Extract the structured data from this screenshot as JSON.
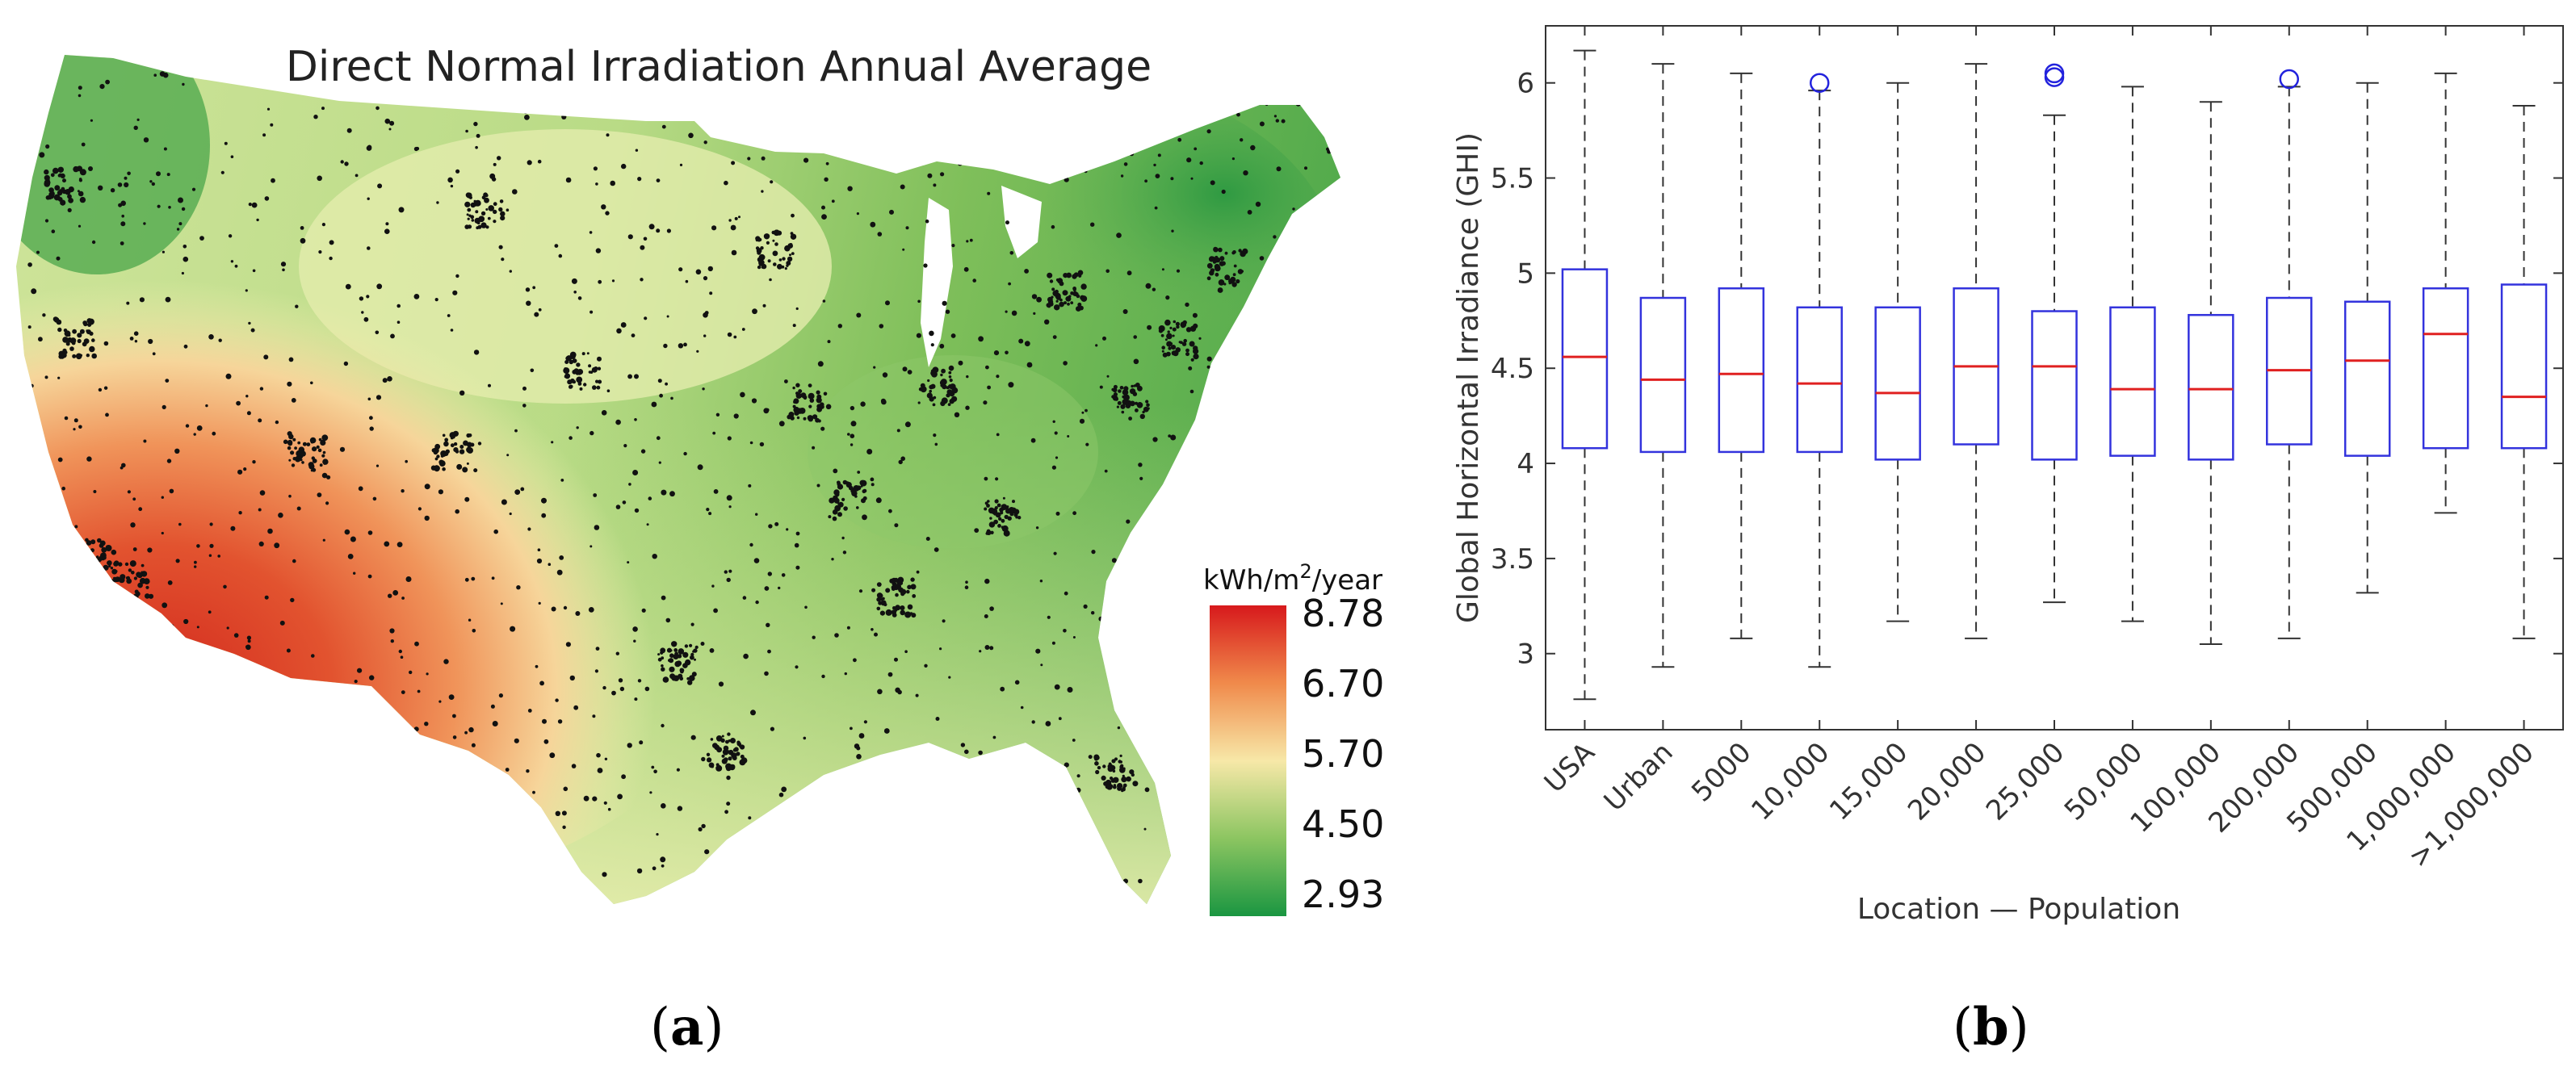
{
  "panels": {
    "a": {
      "letter": "a"
    },
    "b": {
      "letter": "b"
    }
  },
  "map": {
    "title": "Direct Normal Irradiation Annual Average",
    "legend": {
      "unit_prefix": "kWh/m",
      "unit_sup": "2",
      "unit_suffix": "/year",
      "ticks": [
        "8.78",
        "6.70",
        "5.70",
        "4.50",
        "2.93"
      ],
      "colors": [
        "#d7191c",
        "#f08a4b",
        "#f7e8a8",
        "#8cc561",
        "#1a9641"
      ]
    }
  },
  "chart_data": {
    "type": "boxplot",
    "xlabel": "Location — Population",
    "ylabel": "Global Horizontal Irradiance (GHI)",
    "ylim": [
      2.6,
      6.3
    ],
    "yticks": [
      "3",
      "3.5",
      "4",
      "4.5",
      "5",
      "5.5",
      "6"
    ],
    "categories": [
      "USA",
      "Urban",
      "5000",
      "10,000",
      "15,000",
      "20,000",
      "25,000",
      "50,000",
      "100,000",
      "200,000",
      "500,000",
      "1,000,000",
      ">1,000,000"
    ],
    "boxes": [
      {
        "min": 2.76,
        "q1": 4.08,
        "median": 4.56,
        "q3": 5.02,
        "max": 6.17,
        "outliers": []
      },
      {
        "min": 2.93,
        "q1": 4.06,
        "median": 4.44,
        "q3": 4.87,
        "max": 6.1,
        "outliers": []
      },
      {
        "min": 3.08,
        "q1": 4.06,
        "median": 4.47,
        "q3": 4.92,
        "max": 6.05,
        "outliers": []
      },
      {
        "min": 2.93,
        "q1": 4.06,
        "median": 4.42,
        "q3": 4.82,
        "max": 5.96,
        "outliers": [
          6.0
        ]
      },
      {
        "min": 3.17,
        "q1": 4.02,
        "median": 4.37,
        "q3": 4.82,
        "max": 6.0,
        "outliers": []
      },
      {
        "min": 3.08,
        "q1": 4.1,
        "median": 4.51,
        "q3": 4.92,
        "max": 6.1,
        "outliers": []
      },
      {
        "min": 3.27,
        "q1": 4.02,
        "median": 4.51,
        "q3": 4.8,
        "max": 5.83,
        "outliers": [
          6.03,
          6.05
        ]
      },
      {
        "min": 3.17,
        "q1": 4.04,
        "median": 4.39,
        "q3": 4.82,
        "max": 5.98,
        "outliers": []
      },
      {
        "min": 3.05,
        "q1": 4.02,
        "median": 4.39,
        "q3": 4.78,
        "max": 5.9,
        "outliers": []
      },
      {
        "min": 3.08,
        "q1": 4.1,
        "median": 4.49,
        "q3": 4.87,
        "max": 5.98,
        "outliers": [
          6.02
        ]
      },
      {
        "min": 3.32,
        "q1": 4.04,
        "median": 4.54,
        "q3": 4.85,
        "max": 6.0,
        "outliers": []
      },
      {
        "min": 3.74,
        "q1": 4.08,
        "median": 4.68,
        "q3": 4.92,
        "max": 6.05,
        "outliers": []
      },
      {
        "min": 3.08,
        "q1": 4.08,
        "median": 4.35,
        "q3": 4.94,
        "max": 5.88,
        "outliers": []
      }
    ],
    "colors": {
      "box": "#3333dd",
      "median": "#e02020",
      "whisker": "#333333",
      "outlier": "#2222dd"
    }
  }
}
